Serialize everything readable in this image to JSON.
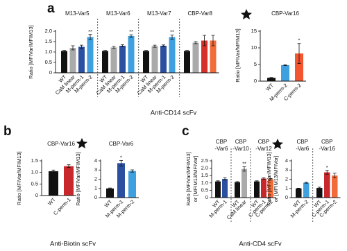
{
  "panels": [
    {
      "letter": "a",
      "caption": "Anti-CD14 scFv"
    },
    {
      "letter": "b",
      "caption": "Anti-Biotin scFv"
    },
    {
      "letter": "c",
      "caption": "Anti-CD4 scFv"
    }
  ],
  "chart_data": [
    {
      "type": "bar",
      "ylabel": [
        "Ratio [MFIVar/MFIM13]"
      ],
      "ylim": [
        0,
        2
      ],
      "yticks": [
        0,
        0.5,
        {
          "value": 1,
          "label": "1.0"
        },
        1.5,
        {
          "value": 2,
          "label": "2.0"
        }
      ],
      "groups": [
        {
          "title": [
            "M13-Var5"
          ],
          "categories": [
            "WT",
            "CaM linear",
            "M-perm-1",
            "M-perm-2"
          ],
          "values": [
            1.05,
            1.2,
            1.25,
            1.72
          ],
          "errors": [
            0.03,
            0.1,
            0.08,
            0.12
          ],
          "colors": [
            "#111111",
            "#aaaaaa",
            "#2c50a0",
            "#3fa0e0"
          ],
          "significance": [
            null,
            null,
            null,
            "**"
          ]
        },
        {
          "title": [
            "M13-Var6"
          ],
          "categories": [
            "WT",
            "CaM linear",
            "M-perm-1",
            "M-perm-2"
          ],
          "values": [
            1.05,
            1.22,
            1.3,
            1.77
          ],
          "errors": [
            0.03,
            0.05,
            0.05,
            0.06
          ],
          "colors": [
            "#111111",
            "#aaaaaa",
            "#2c50a0",
            "#3fa0e0"
          ],
          "significance": [
            null,
            null,
            null,
            "**"
          ]
        },
        {
          "title": [
            "M13-Var7"
          ],
          "categories": [
            "WT",
            "CaM linear",
            "M-perm-1",
            "M-perm-2"
          ],
          "values": [
            1.05,
            1.28,
            1.3,
            1.72
          ],
          "errors": [
            0.03,
            0.05,
            0.04,
            0.1
          ],
          "colors": [
            "#111111",
            "#aaaaaa",
            "#2c50a0",
            "#3fa0e0"
          ],
          "significance": [
            null,
            null,
            null,
            "**"
          ]
        },
        {
          "title": [
            "CBP-Var8"
          ],
          "categories": [
            null,
            null,
            null,
            null
          ],
          "values": [
            1.05,
            1.45,
            1.55,
            1.55
          ],
          "errors": [
            0.03,
            0.05,
            0.25,
            0.25
          ],
          "colors": [
            "#111111",
            "#aaaaaa",
            "#d7302a",
            "#f26b3a"
          ],
          "significance": [
            null,
            null,
            null,
            null
          ]
        }
      ]
    },
    {
      "type": "bar",
      "ylabel": [
        "Ratio [MFIVar/MFIM13]"
      ],
      "ylim": [
        0,
        15
      ],
      "yticks": [
        0,
        5,
        10,
        15
      ],
      "groups": [
        {
          "title": [
            "CBP-Var16"
          ],
          "categories": [
            "WT",
            "M-perm-2",
            "C-perm-2"
          ],
          "values": [
            1,
            4.8,
            8.3
          ],
          "errors": [
            0.1,
            0.1,
            3
          ],
          "colors": [
            "#111111",
            "#3fa0e0",
            "#f2552f"
          ],
          "significance": [
            null,
            null,
            "*"
          ]
        }
      ]
    },
    {
      "type": "bar",
      "ylabel": [
        "Ratio [MFIVar/MFIM13]"
      ],
      "ylim": [
        0,
        1.5
      ],
      "yticks": [
        0,
        0.5,
        {
          "value": 1,
          "label": "1.0"
        },
        1.5
      ],
      "groups": [
        {
          "title": [
            "CBP-Var16"
          ],
          "categories": [
            "WT",
            "C-perm-1"
          ],
          "values": [
            1.05,
            1.27
          ],
          "errors": [
            0.05,
            0.06
          ],
          "colors": [
            "#111111",
            "#c8282c"
          ],
          "significance": [
            null,
            null
          ]
        }
      ]
    },
    {
      "type": "bar",
      "ylabel": [
        "Ratio [MFIVar/MFIM13]"
      ],
      "ylim": [
        0,
        4
      ],
      "yticks": [
        0,
        1,
        2,
        3,
        4
      ],
      "groups": [
        {
          "title": [
            "CBP-Var6"
          ],
          "categories": [
            "WT",
            "M-perm-1",
            "M-perm-2"
          ],
          "values": [
            1,
            3.75,
            2.9
          ],
          "errors": [
            0.05,
            0.3,
            0.12
          ],
          "colors": [
            "#111111",
            "#2c50a0",
            "#3fa0e0"
          ],
          "significance": [
            null,
            "*",
            null
          ]
        }
      ]
    },
    {
      "type": "bar",
      "ylabel": [
        "Ratio [MFIVar/MFIM13]",
        "or [MFIM13/MFIVar]"
      ],
      "ylim": [
        0,
        2.5
      ],
      "yticks": [
        0,
        0.5,
        {
          "value": 1,
          "label": "1.0"
        },
        1.5,
        {
          "value": 2,
          "label": "2.0"
        },
        2.5
      ],
      "groups": [
        {
          "title": [
            "CBP",
            "-Var6"
          ],
          "categories": [
            "WT",
            "M-perm-1"
          ],
          "values": [
            1.1,
            1.27
          ],
          "errors": [
            0.04,
            0.08
          ],
          "colors": [
            "#111111",
            "#2c50a0"
          ],
          "significance": [
            null,
            null
          ]
        },
        {
          "title": [
            "CBP",
            "-Var10"
          ],
          "categories": [
            "WT",
            "CaM linear"
          ],
          "values": [
            1.05,
            1.95
          ],
          "errors": [
            0.04,
            0.15
          ],
          "colors": [
            "#111111",
            "#aaaaaa"
          ],
          "significance": [
            null,
            "**"
          ]
        },
        {
          "title": [
            "CBP",
            "-Var12"
          ],
          "categories": [
            "WT",
            "C-perm-1",
            "C-perm-2"
          ],
          "values": [
            1.1,
            1.3,
            1.25
          ],
          "errors": [
            0.04,
            0.05,
            0.05
          ],
          "colors": [
            "#111111",
            "#c8282c",
            "#f26b3a"
          ],
          "significance": [
            null,
            null,
            null
          ]
        }
      ]
    },
    {
      "type": "bar",
      "ylabel": [
        "Ratio [MFIVar/MFIM13]",
        "or [MFIM13/MFIVar]"
      ],
      "ylim": [
        0,
        4
      ],
      "yticks": [
        0,
        1,
        2,
        3,
        4
      ],
      "groups": [
        {
          "title": [
            "CBP",
            "-Var6"
          ],
          "categories": [
            "WT",
            "M-perm-2"
          ],
          "values": [
            1,
            1.62
          ],
          "errors": [
            0.03,
            0.05
          ],
          "colors": [
            "#111111",
            "#3fa0e0"
          ],
          "significance": [
            null,
            null
          ]
        },
        {
          "title": [
            "CBP",
            "-Var16"
          ],
          "categories": [
            "WT",
            "C-perm-1",
            "C-perm-2"
          ],
          "values": [
            1.05,
            2.75,
            2.4
          ],
          "errors": [
            0.08,
            0.2,
            0.25
          ],
          "colors": [
            "#111111",
            "#c8282c",
            "#f26b3a"
          ],
          "significance": [
            null,
            "*",
            null
          ]
        }
      ]
    }
  ]
}
